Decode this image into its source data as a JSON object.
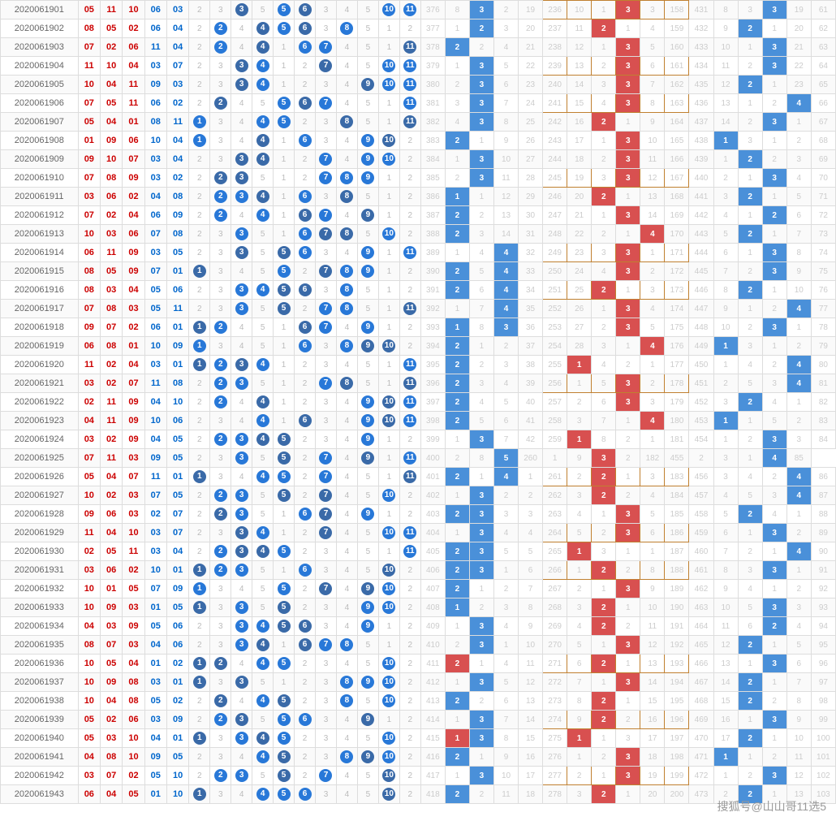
{
  "watermark": "搜狐号@山山哥11选5",
  "periods": [
    "2020061901",
    "2020061902",
    "2020061903",
    "2020061904",
    "2020061905",
    "2020061906",
    "2020061907",
    "2020061908",
    "2020061909",
    "2020061910",
    "2020061911",
    "2020061912",
    "2020061913",
    "2020061914",
    "2020061915",
    "2020061916",
    "2020061917",
    "2020061918",
    "2020061919",
    "2020061920",
    "2020061921",
    "2020061922",
    "2020061923",
    "2020061924",
    "2020061925",
    "2020061926",
    "2020061927",
    "2020061928",
    "2020061929",
    "2020061930",
    "2020061931",
    "2020061932",
    "2020061933",
    "2020061934",
    "2020061935",
    "2020061936",
    "2020061937",
    "2020061938",
    "2020061939",
    "2020061940",
    "2020061941",
    "2020061942",
    "2020061943"
  ],
  "draws": [
    [
      "05",
      "11",
      "10",
      "06",
      "03"
    ],
    [
      "08",
      "05",
      "02",
      "06",
      "04"
    ],
    [
      "07",
      "02",
      "06",
      "11",
      "04"
    ],
    [
      "11",
      "10",
      "04",
      "03",
      "07"
    ],
    [
      "10",
      "04",
      "11",
      "09",
      "03"
    ],
    [
      "07",
      "05",
      "11",
      "06",
      "02"
    ],
    [
      "05",
      "04",
      "01",
      "08",
      "11"
    ],
    [
      "01",
      "09",
      "06",
      "10",
      "04"
    ],
    [
      "09",
      "10",
      "07",
      "03",
      "04"
    ],
    [
      "07",
      "08",
      "09",
      "03",
      "02"
    ],
    [
      "03",
      "06",
      "02",
      "04",
      "08"
    ],
    [
      "07",
      "02",
      "04",
      "06",
      "09"
    ],
    [
      "10",
      "03",
      "06",
      "07",
      "08"
    ],
    [
      "06",
      "11",
      "09",
      "03",
      "05"
    ],
    [
      "08",
      "05",
      "09",
      "07",
      "01"
    ],
    [
      "08",
      "03",
      "04",
      "05",
      "06"
    ],
    [
      "07",
      "08",
      "03",
      "05",
      "11"
    ],
    [
      "09",
      "07",
      "02",
      "06",
      "01"
    ],
    [
      "06",
      "08",
      "01",
      "10",
      "09"
    ],
    [
      "11",
      "02",
      "04",
      "03",
      "01"
    ],
    [
      "03",
      "02",
      "07",
      "11",
      "08"
    ],
    [
      "02",
      "11",
      "09",
      "04",
      "10"
    ],
    [
      "04",
      "11",
      "09",
      "10",
      "06"
    ],
    [
      "03",
      "02",
      "09",
      "04",
      "05"
    ],
    [
      "07",
      "11",
      "03",
      "09",
      "05"
    ],
    [
      "05",
      "04",
      "07",
      "11",
      "01"
    ],
    [
      "10",
      "02",
      "03",
      "07",
      "05"
    ],
    [
      "09",
      "06",
      "03",
      "02",
      "07"
    ],
    [
      "11",
      "04",
      "10",
      "03",
      "07"
    ],
    [
      "02",
      "05",
      "11",
      "03",
      "04"
    ],
    [
      "03",
      "06",
      "02",
      "10",
      "01"
    ],
    [
      "10",
      "01",
      "05",
      "07",
      "09"
    ],
    [
      "10",
      "09",
      "03",
      "01",
      "05"
    ],
    [
      "04",
      "03",
      "09",
      "05",
      "06"
    ],
    [
      "08",
      "07",
      "03",
      "04",
      "06"
    ],
    [
      "10",
      "05",
      "04",
      "01",
      "02"
    ],
    [
      "10",
      "09",
      "08",
      "03",
      "01"
    ],
    [
      "10",
      "04",
      "08",
      "05",
      "02"
    ],
    [
      "05",
      "02",
      "06",
      "03",
      "09"
    ],
    [
      "05",
      "03",
      "10",
      "04",
      "01"
    ],
    [
      "04",
      "08",
      "10",
      "09",
      "05"
    ],
    [
      "03",
      "07",
      "02",
      "05",
      "10"
    ],
    [
      "06",
      "04",
      "05",
      "01",
      "10"
    ]
  ],
  "stats_a_start": 376,
  "stats_a": [
    [
      8,
      "B3",
      2,
      19
    ],
    [
      1,
      "B2",
      3,
      20
    ],
    [
      "B2",
      2,
      4,
      21
    ],
    [
      1,
      "B3",
      5,
      22
    ],
    [
      2,
      "B3",
      6,
      23
    ],
    [
      3,
      "B3",
      7,
      24
    ],
    [
      4,
      "B3",
      8,
      25
    ],
    [
      "B2",
      1,
      9,
      26
    ],
    [
      1,
      "B3",
      10,
      27
    ],
    [
      2,
      "B3",
      11,
      28
    ],
    [
      "B1",
      1,
      12,
      29
    ],
    [
      "B2",
      2,
      13,
      30
    ],
    [
      "B2",
      3,
      14,
      31
    ],
    [
      1,
      4,
      "B4",
      32
    ],
    [
      "B2",
      5,
      "B4",
      33
    ],
    [
      "B2",
      6,
      "B4",
      34
    ],
    [
      1,
      7,
      "B4",
      35
    ],
    [
      "B1",
      8,
      "B3",
      36
    ],
    [
      "B2",
      1,
      2,
      37
    ],
    [
      "B2",
      2,
      3,
      38
    ],
    [
      "B2",
      3,
      4,
      39
    ],
    [
      "B2",
      4,
      5,
      40
    ],
    [
      "B2",
      5,
      6,
      41
    ],
    [
      1,
      "B3",
      7,
      42
    ],
    [
      2,
      8,
      "B5"
    ],
    [
      "B2",
      1,
      "B4",
      1
    ],
    [
      1,
      "B3",
      2,
      2
    ],
    [
      "B2",
      "B3",
      3,
      3
    ],
    [
      1,
      "B3",
      4,
      4
    ],
    [
      "B2",
      "B3",
      5,
      5
    ],
    [
      "B2",
      "B3",
      1,
      6
    ],
    [
      "B2",
      1,
      2,
      7
    ],
    [
      "B1",
      2,
      3,
      8
    ],
    [
      1,
      "B3",
      4,
      9
    ],
    [
      2,
      "B3",
      1,
      10
    ],
    [
      "R2",
      1,
      4,
      11
    ],
    [
      1,
      "B3",
      5,
      12
    ],
    [
      "B2",
      2,
      6,
      13
    ],
    [
      1,
      "B3",
      7,
      14
    ],
    [
      "R1",
      "B3",
      8,
      15
    ],
    [
      "B2",
      1,
      9,
      16
    ],
    [
      1,
      "B3",
      10,
      17
    ],
    [
      "B2",
      2,
      11,
      18
    ]
  ],
  "stats_b_start": 236,
  "stats_b": [
    [
      10,
      1,
      "R3",
      3,
      158
    ],
    [
      11,
      "R2",
      1,
      4,
      159
    ],
    [
      12,
      1,
      "R3",
      5,
      160
    ],
    [
      13,
      2,
      "R3",
      6,
      161
    ],
    [
      14,
      3,
      "R3",
      7,
      162
    ],
    [
      15,
      4,
      "R3",
      8,
      163
    ],
    [
      16,
      "R2",
      1,
      9,
      164
    ],
    [
      17,
      1,
      "R3",
      10,
      165
    ],
    [
      18,
      2,
      "R3",
      11,
      166
    ],
    [
      19,
      3,
      "R3",
      12,
      167
    ],
    [
      20,
      "R2",
      1,
      13,
      168
    ],
    [
      21,
      1,
      "R3",
      14,
      169
    ],
    [
      22,
      2,
      1,
      "R4",
      170
    ],
    [
      23,
      3,
      "R3",
      1,
      171
    ],
    [
      24,
      4,
      "R3",
      2,
      172
    ],
    [
      25,
      "R2",
      1,
      3,
      173
    ],
    [
      26,
      1,
      "R3",
      4,
      174
    ],
    [
      27,
      2,
      "R3",
      5,
      175
    ],
    [
      28,
      3,
      1,
      "R4",
      176
    ],
    [
      "R1",
      4,
      2,
      1,
      177
    ],
    [
      1,
      5,
      "R3",
      2,
      178
    ],
    [
      2,
      6,
      "R3",
      3,
      179
    ],
    [
      3,
      7,
      1,
      "R4",
      180
    ],
    [
      "R1",
      8,
      2,
      1,
      181
    ],
    [
      1,
      9,
      "R3",
      2,
      182
    ],
    [
      2,
      "R2",
      1,
      3,
      183
    ],
    [
      3,
      "R2",
      2,
      4,
      184
    ],
    [
      4,
      1,
      "R3",
      5,
      185
    ],
    [
      5,
      2,
      "R3",
      6,
      186
    ],
    [
      "R1",
      3,
      1,
      1,
      187
    ],
    [
      1,
      "R2",
      2,
      8,
      188
    ],
    [
      2,
      1,
      "R3",
      9,
      189
    ],
    [
      3,
      "R2",
      1,
      10,
      190
    ],
    [
      4,
      "R2",
      2,
      11,
      191
    ],
    [
      5,
      1,
      "R3",
      12,
      192
    ],
    [
      6,
      "R2",
      1,
      13,
      193
    ],
    [
      7,
      1,
      "R3",
      14,
      194
    ],
    [
      8,
      "R2",
      1,
      15,
      195
    ],
    [
      9,
      "R2",
      2,
      16,
      196
    ],
    [
      "R1",
      1,
      3,
      17,
      197
    ],
    [
      1,
      2,
      "R3",
      18,
      198
    ],
    [
      2,
      1,
      "R3",
      19,
      199
    ],
    [
      3,
      "R2",
      1,
      20,
      200
    ]
  ],
  "stats_c_start": 431,
  "stats_c": [
    [
      8,
      3,
      "B3",
      19,
      61
    ],
    [
      9,
      "B2",
      1,
      20,
      62
    ],
    [
      10,
      1,
      "B3",
      21,
      63
    ],
    [
      11,
      2,
      "B3",
      22,
      64
    ],
    [
      12,
      "B2",
      1,
      23,
      65
    ],
    [
      13,
      1,
      2,
      "B4",
      66
    ],
    [
      14,
      2,
      "B3",
      1,
      67
    ],
    [
      "B1",
      3,
      1,
      2,
      68
    ],
    [
      1,
      "B2",
      2,
      3,
      69
    ],
    [
      2,
      1,
      "B3",
      4,
      70
    ],
    [
      3,
      "B2",
      1,
      5,
      71
    ],
    [
      4,
      1,
      "B2",
      6,
      72
    ],
    [
      5,
      "B2",
      1,
      7,
      73
    ],
    [
      6,
      1,
      "B3",
      8,
      74
    ],
    [
      7,
      2,
      "B3",
      9,
      75
    ],
    [
      8,
      "B2",
      1,
      10,
      76
    ],
    [
      9,
      1,
      2,
      "B4",
      77
    ],
    [
      10,
      2,
      "B3",
      1,
      78
    ],
    [
      "B1",
      3,
      1,
      2,
      79
    ],
    [
      1,
      4,
      2,
      "B4",
      80
    ],
    [
      2,
      5,
      3,
      "B4",
      81
    ],
    [
      3,
      "B2",
      4,
      1,
      82
    ],
    [
      "B1",
      1,
      5,
      2,
      83
    ],
    [
      1,
      2,
      "B3",
      3,
      84
    ],
    [
      2,
      3,
      1,
      "B4",
      85
    ],
    [
      3,
      4,
      2,
      "B4",
      86
    ],
    [
      4,
      5,
      3,
      "B4",
      87
    ],
    [
      5,
      "B2",
      4,
      1,
      88
    ],
    [
      6,
      1,
      "B3",
      2,
      89
    ],
    [
      7,
      2,
      1,
      "B4",
      90
    ],
    [
      8,
      3,
      "B3",
      1,
      91
    ],
    [
      9,
      4,
      1,
      2,
      92
    ],
    [
      10,
      5,
      "B3",
      3,
      93
    ],
    [
      11,
      6,
      "B2",
      4,
      94
    ],
    [
      12,
      "B2",
      1,
      5,
      95
    ],
    [
      13,
      1,
      "B3",
      6,
      96
    ],
    [
      14,
      "B2",
      1,
      7,
      97
    ],
    [
      15,
      "B2",
      2,
      8,
      98
    ],
    [
      16,
      1,
      "B3",
      9,
      99
    ],
    [
      17,
      "B2",
      1,
      10,
      100
    ],
    [
      "B1",
      1,
      2,
      11,
      101
    ],
    [
      1,
      2,
      "B3",
      12,
      102
    ],
    [
      2,
      "B2",
      1,
      13,
      103
    ]
  ],
  "boxed_rows": [
    0,
    3,
    5,
    9,
    13,
    15,
    20,
    25,
    28,
    30,
    35,
    38,
    41
  ],
  "colors": {
    "ball_blue": "#2878d8",
    "ball_dark": "#3a6aa8",
    "hl_blue": "#4a90d9",
    "hl_red": "#d85050",
    "num_red": "#c00",
    "num_blue": "#06c",
    "grid_text": "#bbb",
    "border": "#ddd"
  }
}
